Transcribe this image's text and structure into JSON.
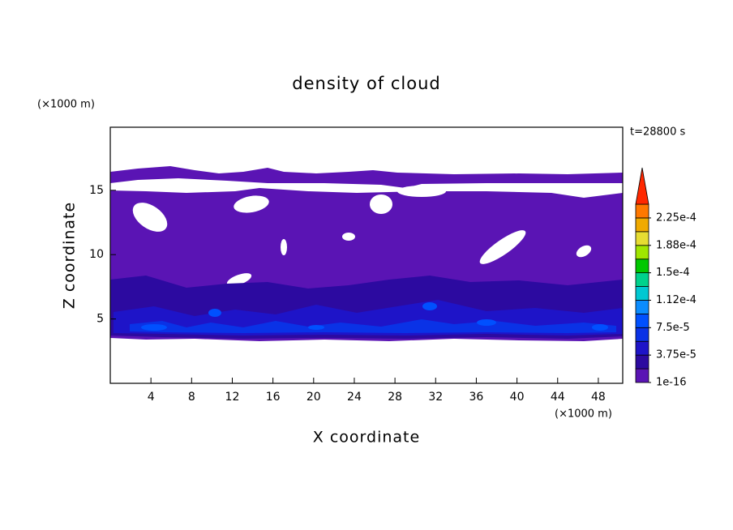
{
  "chart_data": {
    "type": "contour",
    "title": "density of cloud",
    "x_label": "X coordinate",
    "y_label": "Z coordinate",
    "x_unit": "(×1000 m)",
    "y_unit": "(×1000 m)",
    "annotation": "t=28800 s",
    "xlim": [
      0,
      50.4
    ],
    "xticks": [
      4,
      8,
      12,
      16,
      20,
      24,
      28,
      32,
      36,
      40,
      44,
      48
    ],
    "ylim": [
      0,
      19.9
    ],
    "yticks": [
      5,
      10,
      15
    ],
    "colorbar": {
      "levels": [
        1e-16,
        1.875e-05,
        3.75e-05,
        5.625e-05,
        7.5e-05,
        9.375e-05,
        0.0001125,
        0.00013125,
        0.00015,
        0.00016875,
        0.0001875,
        0.00020625,
        0.000225,
        0.00024375
      ],
      "colors": [
        "#5a14b4",
        "#2c0aa0",
        "#1e14c8",
        "#0a32e6",
        "#0050ff",
        "#0a8cff",
        "#00c8d2",
        "#00d28c",
        "#00c800",
        "#a0e600",
        "#e6dc32",
        "#f0aa00",
        "#ff7800",
        "#ff2800",
        "#f0a0a0"
      ],
      "ticks": [
        {
          "value": 1e-16,
          "label": "1e-16"
        },
        {
          "value": 3.75e-05,
          "label": "3.75e-5"
        },
        {
          "value": 7.5e-05,
          "label": "7.5e-5"
        },
        {
          "value": 0.0001125,
          "label": "1.12e-4"
        },
        {
          "value": 0.00015,
          "label": "1.5e-4"
        },
        {
          "value": 0.0001875,
          "label": "1.88e-4"
        },
        {
          "value": 0.000225,
          "label": "2.25e-4"
        }
      ]
    }
  }
}
